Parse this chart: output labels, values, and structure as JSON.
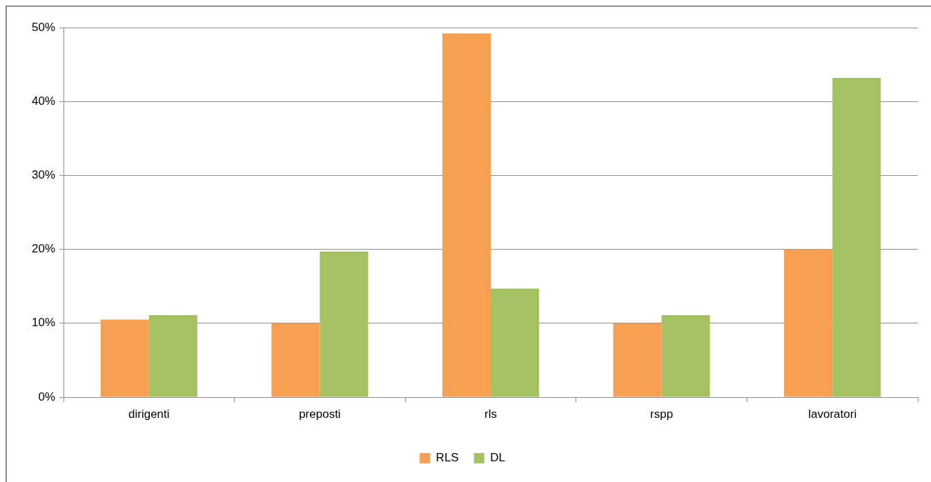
{
  "chart_data": {
    "type": "bar",
    "categories": [
      "dirigenti",
      "preposti",
      "rls",
      "rspp",
      "lavoratori"
    ],
    "series": [
      {
        "name": "RLS",
        "color": "#f79f52",
        "values": [
          10.5,
          10.0,
          49.2,
          10.0,
          20.0
        ]
      },
      {
        "name": "DL",
        "color": "#a5c263",
        "values": [
          11.1,
          19.7,
          14.7,
          11.1,
          43.2
        ]
      }
    ],
    "ylim": [
      0,
      50
    ],
    "yticks": [
      {
        "value": 0,
        "label": "0%"
      },
      {
        "value": 10,
        "label": "10%"
      },
      {
        "value": 20,
        "label": "20%"
      },
      {
        "value": 30,
        "label": "30%"
      },
      {
        "value": 40,
        "label": "40%"
      },
      {
        "value": 50,
        "label": "50%"
      }
    ],
    "grid": "y",
    "legend": "bottom"
  }
}
